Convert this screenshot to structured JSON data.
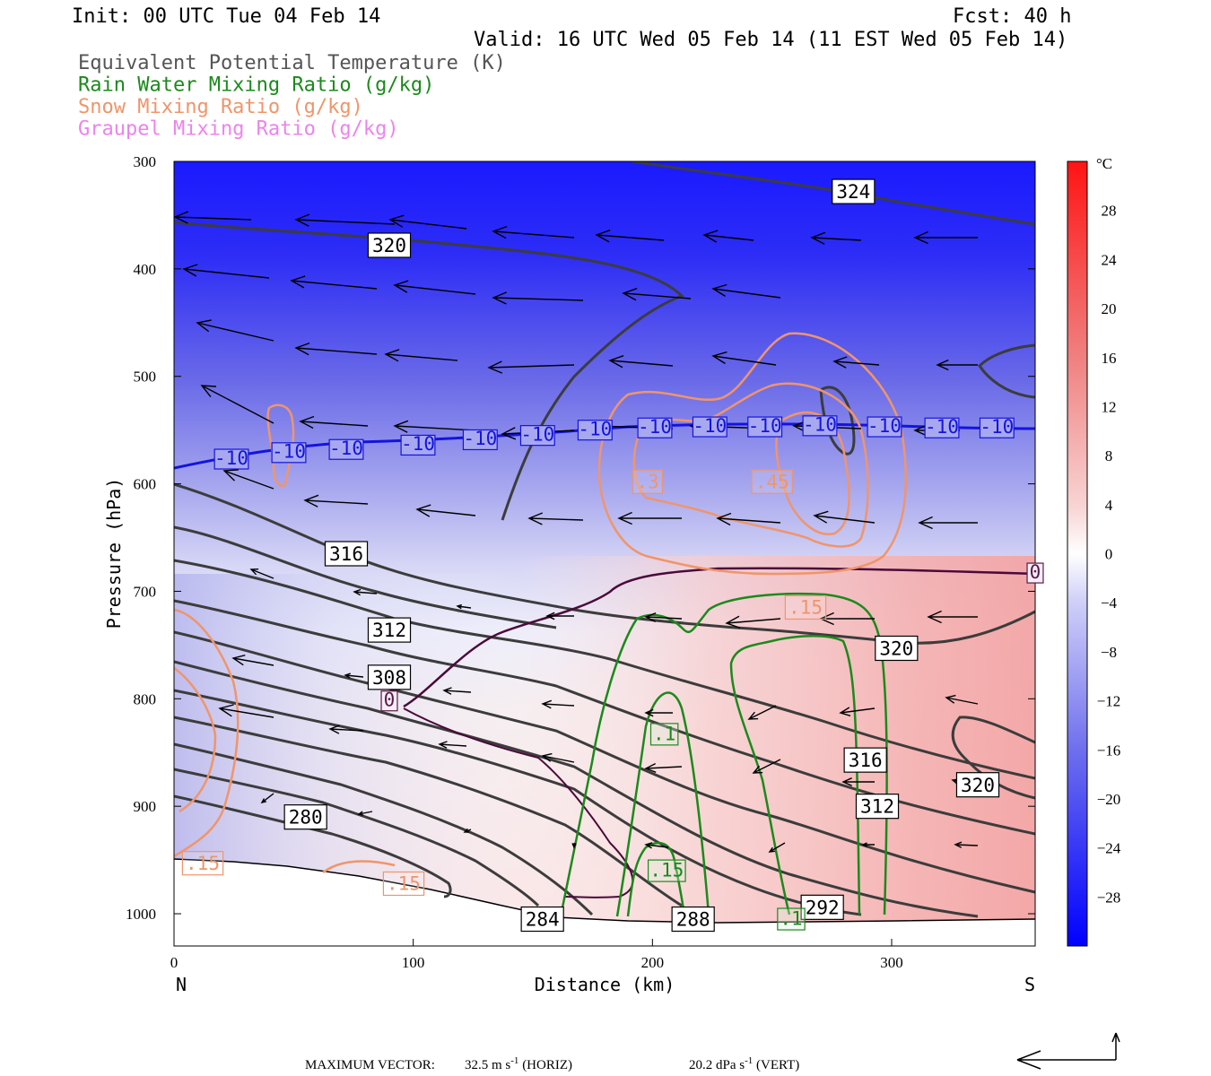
{
  "header": {
    "init": "Init: 00 UTC Tue 04 Feb 14",
    "fcst": "Fcst:   40 h",
    "valid": "Valid: 16 UTC Wed 05 Feb 14 (11 EST Wed 05 Feb 14)"
  },
  "legend": [
    {
      "text": "Equivalent Potential Temperature (K)",
      "color": "#555555"
    },
    {
      "text": "Rain Water Mixing Ratio (g/kg)",
      "color": "#1a8a1a"
    },
    {
      "text": "Snow Mixing Ratio (g/kg)",
      "color": "#f0956a"
    },
    {
      "text": "Graupel Mixing Ratio (g/kg)",
      "color": "#ee82ee"
    }
  ],
  "chart_data": {
    "type": "cross-section",
    "xlabel": "Distance (km)",
    "ylabel": "Pressure (hPa)",
    "xlim": [
      0,
      360
    ],
    "ylim": [
      1030,
      300
    ],
    "x_ticks": [
      "0",
      "100",
      "200",
      "300"
    ],
    "x_tick_values": [
      0,
      100,
      200,
      300
    ],
    "y_ticks": [
      "300",
      "400",
      "500",
      "600",
      "700",
      "800",
      "900",
      "1000"
    ],
    "y_tick_values": [
      300,
      400,
      500,
      600,
      700,
      800,
      900,
      1000
    ],
    "x_end_labels": {
      "left": "N",
      "right": "S"
    },
    "colorbar": {
      "unit": "°C",
      "labels": [
        "28",
        "24",
        "20",
        "16",
        "12",
        "8",
        "4",
        "0",
        "−4",
        "−8",
        "−12",
        "−16",
        "−20",
        "−24",
        "−28"
      ],
      "label_values": [
        28,
        24,
        20,
        16,
        12,
        8,
        4,
        0,
        -4,
        -8,
        -12,
        -16,
        -20,
        -24,
        -28
      ],
      "range": [
        -32,
        32
      ]
    },
    "theta_e_labels": [
      {
        "text": "324",
        "x": 284,
        "p": 328
      },
      {
        "text": "320",
        "x": 90,
        "p": 378
      },
      {
        "text": "316",
        "x": 72,
        "p": 665
      },
      {
        "text": "312",
        "x": 90,
        "p": 736
      },
      {
        "text": "308",
        "x": 90,
        "p": 780
      },
      {
        "text": "320",
        "x": 302,
        "p": 753
      },
      {
        "text": "316",
        "x": 289,
        "p": 857
      },
      {
        "text": "312",
        "x": 294,
        "p": 900
      },
      {
        "text": "320",
        "x": 336,
        "p": 880
      },
      {
        "text": "280",
        "x": 55,
        "p": 910
      },
      {
        "text": "284",
        "x": 154,
        "p": 1005
      },
      {
        "text": "288",
        "x": 217,
        "p": 1005
      },
      {
        "text": "292",
        "x": 271,
        "p": 994
      }
    ],
    "temperature_labels": [
      {
        "text": "-10",
        "x": 24,
        "p": 577
      },
      {
        "text": "-10",
        "x": 48,
        "p": 571
      },
      {
        "text": "-10",
        "x": 72,
        "p": 568
      },
      {
        "text": "-10",
        "x": 102,
        "p": 564
      },
      {
        "text": "-10",
        "x": 128,
        "p": 559
      },
      {
        "text": "-10",
        "x": 152,
        "p": 555
      },
      {
        "text": "-10",
        "x": 176,
        "p": 550
      },
      {
        "text": "-10",
        "x": 201,
        "p": 548
      },
      {
        "text": "-10",
        "x": 224,
        "p": 547
      },
      {
        "text": "-10",
        "x": 247,
        "p": 547
      },
      {
        "text": "-10",
        "x": 270,
        "p": 546
      },
      {
        "text": "-10",
        "x": 297,
        "p": 547
      },
      {
        "text": "-10",
        "x": 321,
        "p": 548
      },
      {
        "text": "-10",
        "x": 344,
        "p": 548
      },
      {
        "text": "0",
        "x": 360,
        "p": 683
      },
      {
        "text": "0",
        "x": 90,
        "p": 802
      }
    ],
    "snow_labels": [
      {
        "text": ".3",
        "x": 198,
        "p": 598
      },
      {
        "text": ".45",
        "x": 250,
        "p": 598
      },
      {
        "text": ".15",
        "x": 264,
        "p": 715
      },
      {
        "text": ".15",
        "x": 12,
        "p": 953
      },
      {
        "text": ".15",
        "x": 96,
        "p": 972
      }
    ],
    "rain_labels": [
      {
        "text": ".1",
        "x": 205,
        "p": 833
      },
      {
        "text": ".15",
        "x": 206,
        "p": 960
      },
      {
        "text": ".1",
        "x": 258,
        "p": 1005
      }
    ]
  },
  "footer": {
    "max_vector_label": "MAXIMUM VECTOR:",
    "horiz_value": "32.5 m s",
    "horiz_exp": "-1",
    "horiz_unit": "(HORIZ)",
    "vert_value": "20.2 dPa s",
    "vert_exp": "-1",
    "vert_unit": "(VERT)"
  }
}
